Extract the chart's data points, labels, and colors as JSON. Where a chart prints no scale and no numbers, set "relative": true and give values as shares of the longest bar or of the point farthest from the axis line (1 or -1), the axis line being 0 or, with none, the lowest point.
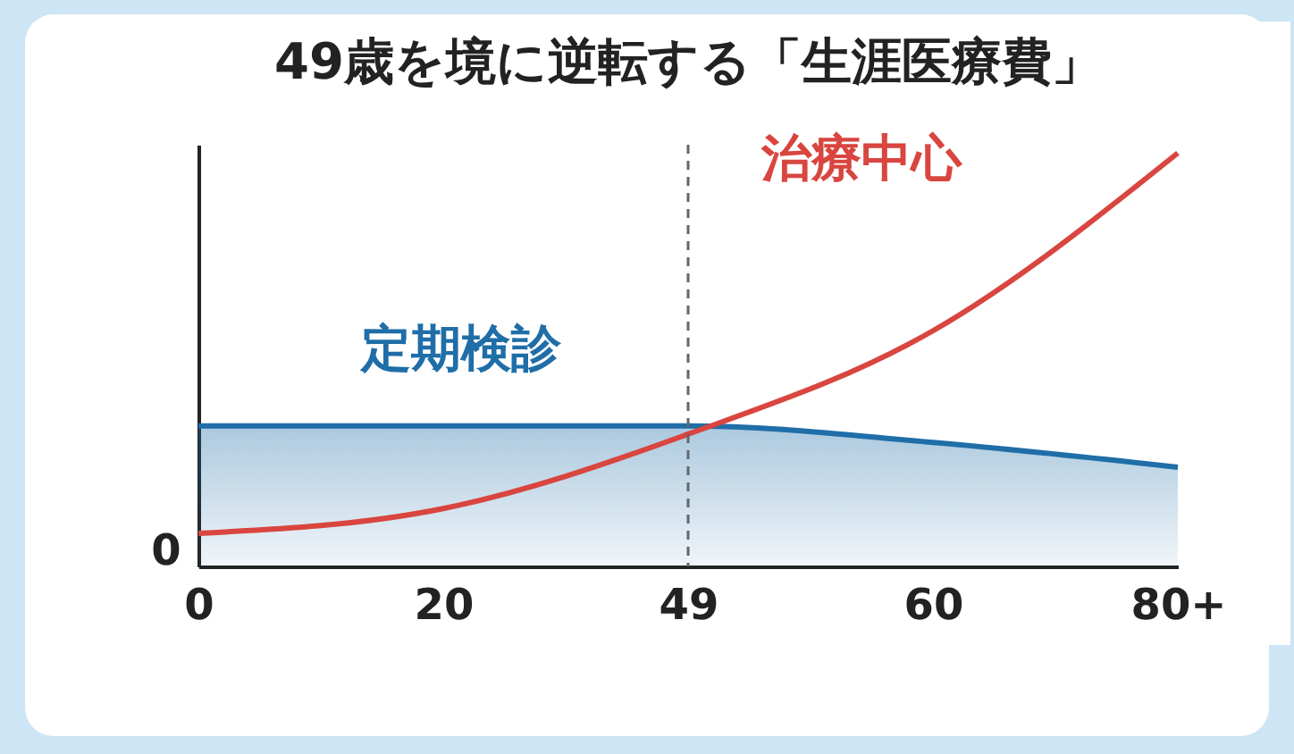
{
  "chart_data": {
    "type": "area",
    "title": "49歳を境に逆転する「生涯医療費」",
    "relative": true,
    "categories": [
      "0",
      "20",
      "49",
      "60",
      "80+"
    ],
    "series": [
      {
        "name": "定期検診",
        "color": "#1f6ea8",
        "values": [
          0.34,
          0.34,
          0.34,
          0.3,
          0.24
        ]
      },
      {
        "name": "治療中心",
        "type": "line",
        "color": "#d9453f",
        "values": [
          0.08,
          0.14,
          0.32,
          0.57,
          1
        ]
      }
    ],
    "ref_lines": [
      {
        "axis": "x",
        "value": "49",
        "line_style": "dashed",
        "color": "#666666"
      }
    ],
    "annotations": [
      "0"
    ],
    "grid": false
  }
}
